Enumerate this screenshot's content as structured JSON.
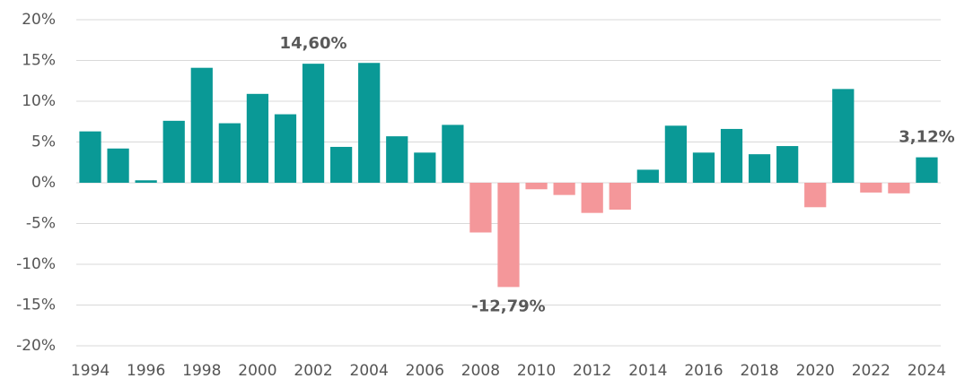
{
  "chart_data": {
    "type": "bar",
    "categories": [
      "1994",
      null,
      "1996",
      null,
      "1998",
      null,
      "2000",
      null,
      "2002",
      null,
      "2004",
      null,
      "2006",
      null,
      "2008",
      null,
      "2010",
      null,
      "2012",
      null,
      "2014",
      null,
      "2016",
      null,
      "2018",
      null,
      "2020",
      null,
      "2022",
      null,
      "2024"
    ],
    "values": [
      6.3,
      4.2,
      0.3,
      7.6,
      14.1,
      7.3,
      10.9,
      8.4,
      14.6,
      4.4,
      14.7,
      5.7,
      3.7,
      7.1,
      -6.1,
      -12.79,
      -0.8,
      -1.5,
      -3.7,
      -3.3,
      1.6,
      7.0,
      3.7,
      6.6,
      3.5,
      4.5,
      -3.0,
      11.5,
      -1.2,
      -1.3,
      3.12
    ],
    "value_labels": [
      null,
      null,
      null,
      null,
      null,
      null,
      null,
      null,
      "14,60%",
      null,
      null,
      null,
      null,
      null,
      null,
      "-12,79%",
      null,
      null,
      null,
      null,
      null,
      null,
      null,
      null,
      null,
      null,
      null,
      null,
      null,
      null,
      "3,12%"
    ],
    "positive_color": "#0a9996",
    "negative_color": "#f4979a",
    "ylim": [
      -20,
      20
    ],
    "yticks": [
      {
        "value": -20,
        "label": "-20%"
      },
      {
        "value": -15,
        "label": "-15%"
      },
      {
        "value": -10,
        "label": "-10%"
      },
      {
        "value": -5,
        "label": "-5%"
      },
      {
        "value": 0,
        "label": "0%"
      },
      {
        "value": 5,
        "label": "5%"
      },
      {
        "value": 10,
        "label": "10%"
      },
      {
        "value": 15,
        "label": "15%"
      },
      {
        "value": 20,
        "label": "20%"
      }
    ],
    "grid": true
  }
}
